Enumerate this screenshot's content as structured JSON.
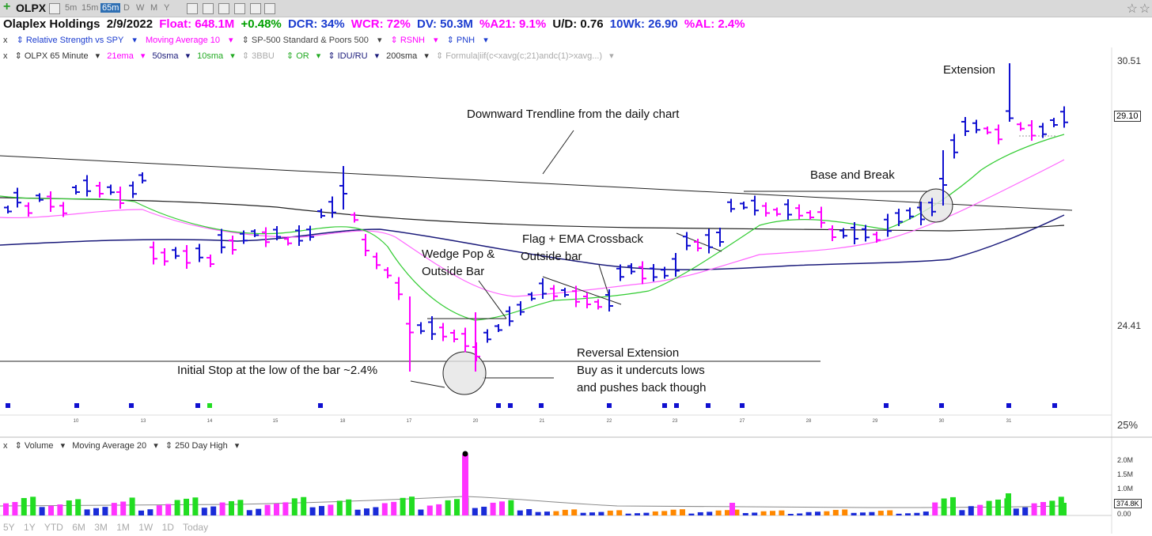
{
  "toolbar": {
    "symbol": "OLPX",
    "timeframes": [
      "5m",
      "15m",
      "65m",
      "D",
      "W",
      "M",
      "Y"
    ],
    "selected_timeframe": "65m"
  },
  "header": {
    "name": "Olaplex Holdings",
    "date": "2/9/2022",
    "float": "Float: 648.1M",
    "change": "+0.48%",
    "dcr": "DCR: 34%",
    "wcr": "WCR: 72%",
    "dv": "DV: 50.3M",
    "a21": "%A21: 9.1%",
    "ud": "U/D: 0.76",
    "wk10": "10Wk: 26.90",
    "al": "%AL: 2.4%"
  },
  "indicators": [
    "Relative Strength vs SPY",
    "Moving Average 10",
    "SP-500 Standard & Poors 500",
    "RSNH",
    "PNH"
  ],
  "chart_indicators": [
    "OLPX 65 Minute",
    "21ema",
    "50sma",
    "10sma",
    "3BBU",
    "OR",
    "IDU/RU",
    "200sma",
    "Formula|iif(c<xavg(c;21)andc(1)>xavg...)"
  ],
  "volume_indicators": [
    "Volume",
    "Moving Average 20",
    "250 Day High"
  ],
  "price_labels": {
    "high": "30.51",
    "current": "29.10",
    "low": "24.41",
    "pct": "25%"
  },
  "volume_labels": [
    "2.0M",
    "1.5M",
    "1.0M",
    "374.8K",
    "0.00"
  ],
  "dates": [
    "10",
    "13",
    "14",
    "15",
    "18",
    "17",
    "20",
    "21",
    "22",
    "23",
    "27",
    "28",
    "29",
    "30",
    "31"
  ],
  "annotations": {
    "trendline": "Downward Trendline from the daily chart",
    "extension": "Extension",
    "base_break": "Base and Break",
    "flag1": "Flag + EMA Crossback",
    "flag2": "Outside bar",
    "wedge1": "Wedge Pop &",
    "wedge2": "Outside Bar",
    "reversal1": "Reversal Extension",
    "reversal2": "Buy as it undercuts lows",
    "reversal3": "and pushes back though",
    "stop": "Initial Stop at the low of the bar ~2.4%"
  },
  "bottom_ranges": [
    "5Y",
    "1Y",
    "YTD",
    "6M",
    "3M",
    "1M",
    "1W",
    "1D",
    "Today"
  ],
  "colors": {
    "up": "#1010d0",
    "down": "#ff00ff",
    "ema21": "#ff66ff",
    "sma10": "#33cc33",
    "sma50": "#1a1a7a",
    "sma200": "#222222",
    "vol_up": "#1a2bd8",
    "vol_down": "#ff33ff",
    "vol_green": "#22dd22",
    "vol_orange": "#ff8800"
  },
  "chart_data": {
    "type": "line",
    "title": "OLPX 65 Minute",
    "y_axis": {
      "labels": [
        {
          "value": "30.51"
        },
        {
          "value": "29.10"
        },
        {
          "value": "24.41"
        }
      ]
    },
    "volume_axis": {
      "labels": [
        "2.0M",
        "1.5M",
        "1.0M",
        "374.8K",
        "0.00"
      ]
    },
    "x_labels": [
      "10",
      "13",
      "14",
      "15",
      "18",
      "17",
      "20",
      "21",
      "22",
      "23",
      "27",
      "28",
      "29",
      "30",
      "31"
    ]
  }
}
